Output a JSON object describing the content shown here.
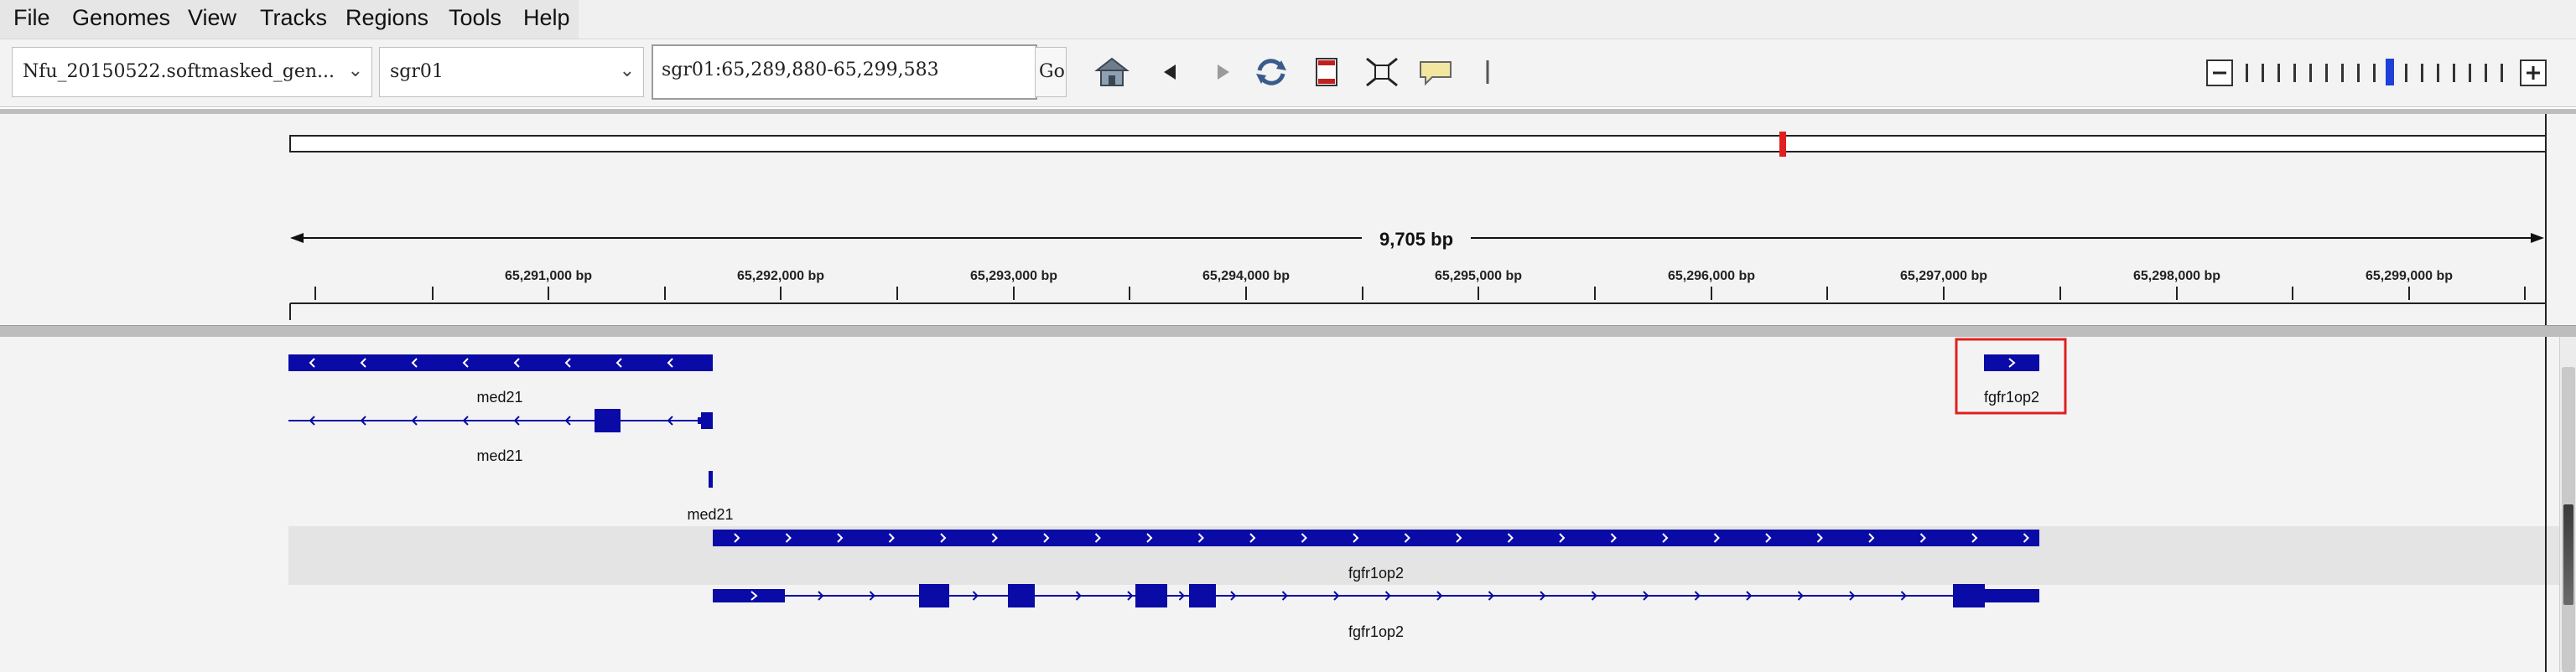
{
  "menu": {
    "items": [
      "File",
      "Genomes",
      "View",
      "Tracks",
      "Regions",
      "Tools",
      "Help"
    ]
  },
  "toolbar": {
    "genome_select": "Nfu_20150522.softmasked_gen...",
    "chromosome_select": "sgr01",
    "locus": "sgr01:65,289,880-65,299,583",
    "go_label": "Go",
    "icons": [
      "home-icon",
      "back-icon",
      "forward-icon",
      "refresh-icon",
      "roi-icon",
      "resize-icon",
      "popup-info-icon",
      "divider-icon"
    ]
  },
  "zoom": {
    "minus": "−",
    "plus": "+",
    "level_index": 9,
    "ticks": 17
  },
  "ruler": {
    "span_label": "9,705 bp",
    "tick_labels": [
      "65,291,000 bp",
      "65,292,000 bp",
      "65,293,000 bp",
      "65,294,000 bp",
      "65,295,000 bp",
      "65,296,000 bp",
      "65,297,000 bp",
      "65,298,000 bp",
      "65,299,000 bp"
    ]
  },
  "features": {
    "med21_a": "med21",
    "med21_b": "med21",
    "med21_c": "med21",
    "fgfr1op2_a": "fgfr1op2",
    "fgfr1op2_b": "fgfr1op2",
    "fgfr1op2_c": "fgfr1op2"
  },
  "colors": {
    "feature": "#0a0aa6",
    "highlight": "#e02020",
    "chrom_marker": "#e02020"
  }
}
